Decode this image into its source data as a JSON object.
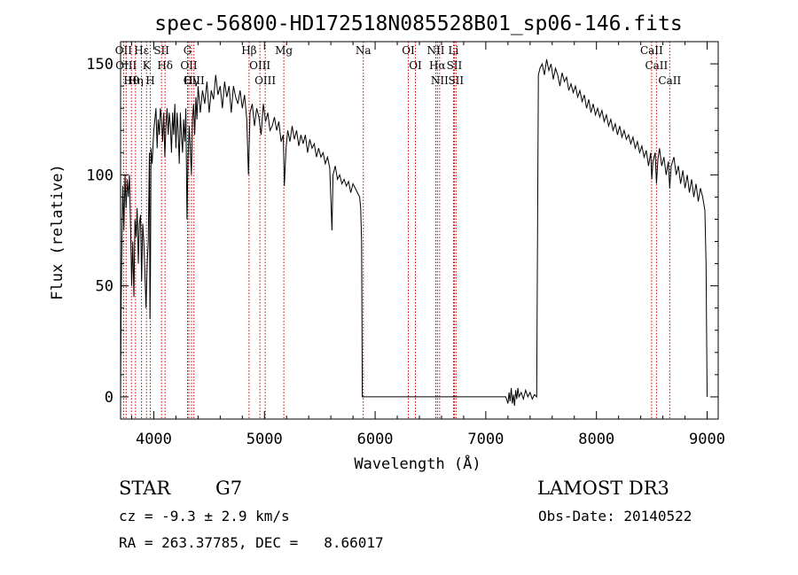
{
  "chart_data": {
    "type": "line",
    "title": "spec-56800-HD172518N085528B01_sp06-146.fits",
    "xlabel": "Wavelength (Å)",
    "ylabel": "Flux (relative)",
    "xlim": [
      3700,
      9100
    ],
    "ylim": [
      -10,
      160
    ],
    "xticks": [
      4000,
      5000,
      6000,
      7000,
      8000,
      9000
    ],
    "yticks": [
      0,
      50,
      100,
      150
    ],
    "grid": false,
    "series": [
      {
        "values": [
          [
            3700,
            0
          ],
          [
            3705,
            40
          ],
          [
            3712,
            70
          ],
          [
            3720,
            95
          ],
          [
            3730,
            75
          ],
          [
            3740,
            100
          ],
          [
            3750,
            85
          ],
          [
            3760,
            98
          ],
          [
            3770,
            90
          ],
          [
            3780,
            100
          ],
          [
            3790,
            78
          ],
          [
            3800,
            50
          ],
          [
            3810,
            70
          ],
          [
            3820,
            45
          ],
          [
            3830,
            80
          ],
          [
            3840,
            72
          ],
          [
            3850,
            85
          ],
          [
            3860,
            60
          ],
          [
            3870,
            78
          ],
          [
            3880,
            82
          ],
          [
            3890,
            52
          ],
          [
            3900,
            78
          ],
          [
            3910,
            70
          ],
          [
            3920,
            55
          ],
          [
            3930,
            40
          ],
          [
            3940,
            60
          ],
          [
            3950,
            70
          ],
          [
            3960,
            110
          ],
          [
            3965,
            35
          ],
          [
            3970,
            55
          ],
          [
            3975,
            112
          ],
          [
            3985,
            105
          ],
          [
            4000,
            120
          ],
          [
            4010,
            125
          ],
          [
            4020,
            130
          ],
          [
            4030,
            112
          ],
          [
            4040,
            125
          ],
          [
            4050,
            118
          ],
          [
            4060,
            130
          ],
          [
            4070,
            125
          ],
          [
            4080,
            115
          ],
          [
            4090,
            128
          ],
          [
            4100,
            108
          ],
          [
            4110,
            122
          ],
          [
            4120,
            130
          ],
          [
            4130,
            118
          ],
          [
            4140,
            128
          ],
          [
            4150,
            122
          ],
          [
            4160,
            110
          ],
          [
            4170,
            128
          ],
          [
            4180,
            118
          ],
          [
            4190,
            132
          ],
          [
            4200,
            112
          ],
          [
            4210,
            128
          ],
          [
            4220,
            120
          ],
          [
            4230,
            105
          ],
          [
            4240,
            128
          ],
          [
            4250,
            118
          ],
          [
            4260,
            110
          ],
          [
            4270,
            125
          ],
          [
            4280,
            115
          ],
          [
            4290,
            130
          ],
          [
            4300,
            80
          ],
          [
            4310,
            108
          ],
          [
            4320,
            122
          ],
          [
            4330,
            112
          ],
          [
            4340,
            100
          ],
          [
            4350,
            125
          ],
          [
            4360,
            132
          ],
          [
            4370,
            118
          ],
          [
            4380,
            135
          ],
          [
            4390,
            125
          ],
          [
            4400,
            140
          ],
          [
            4420,
            128
          ],
          [
            4440,
            138
          ],
          [
            4460,
            132
          ],
          [
            4480,
            142
          ],
          [
            4500,
            128
          ],
          [
            4520,
            138
          ],
          [
            4540,
            134
          ],
          [
            4560,
            145
          ],
          [
            4580,
            136
          ],
          [
            4600,
            140
          ],
          [
            4620,
            130
          ],
          [
            4640,
            142
          ],
          [
            4660,
            135
          ],
          [
            4680,
            140
          ],
          [
            4700,
            128
          ],
          [
            4720,
            140
          ],
          [
            4740,
            135
          ],
          [
            4760,
            132
          ],
          [
            4780,
            138
          ],
          [
            4800,
            130
          ],
          [
            4820,
            136
          ],
          [
            4840,
            125
          ],
          [
            4855,
            100
          ],
          [
            4870,
            128
          ],
          [
            4890,
            132
          ],
          [
            4910,
            122
          ],
          [
            4930,
            130
          ],
          [
            4950,
            126
          ],
          [
            4970,
            118
          ],
          [
            4990,
            132
          ],
          [
            5010,
            124
          ],
          [
            5030,
            128
          ],
          [
            5050,
            120
          ],
          [
            5070,
            122
          ],
          [
            5090,
            126
          ],
          [
            5110,
            120
          ],
          [
            5130,
            124
          ],
          [
            5150,
            115
          ],
          [
            5170,
            118
          ],
          [
            5180,
            95
          ],
          [
            5195,
            112
          ],
          [
            5210,
            120
          ],
          [
            5230,
            115
          ],
          [
            5250,
            122
          ],
          [
            5270,
            116
          ],
          [
            5290,
            120
          ],
          [
            5310,
            113
          ],
          [
            5330,
            118
          ],
          [
            5350,
            114
          ],
          [
            5370,
            118
          ],
          [
            5390,
            110
          ],
          [
            5410,
            116
          ],
          [
            5430,
            112
          ],
          [
            5450,
            114
          ],
          [
            5470,
            108
          ],
          [
            5490,
            112
          ],
          [
            5510,
            108
          ],
          [
            5530,
            110
          ],
          [
            5550,
            105
          ],
          [
            5570,
            108
          ],
          [
            5590,
            103
          ],
          [
            5610,
            75
          ],
          [
            5620,
            100
          ],
          [
            5640,
            104
          ],
          [
            5660,
            98
          ],
          [
            5680,
            100
          ],
          [
            5700,
            96
          ],
          [
            5720,
            98
          ],
          [
            5740,
            95
          ],
          [
            5760,
            97
          ],
          [
            5780,
            92
          ],
          [
            5800,
            96
          ],
          [
            5820,
            94
          ],
          [
            5840,
            92
          ],
          [
            5860,
            90
          ],
          [
            5870,
            85
          ],
          [
            5878,
            70
          ],
          [
            5884,
            0
          ],
          [
            5900,
            0
          ],
          [
            6200,
            0
          ],
          [
            6600,
            0
          ],
          [
            7000,
            0
          ],
          [
            7180,
            0
          ],
          [
            7200,
            -3
          ],
          [
            7210,
            2
          ],
          [
            7220,
            -2
          ],
          [
            7230,
            4
          ],
          [
            7240,
            -3
          ],
          [
            7250,
            1
          ],
          [
            7260,
            -4
          ],
          [
            7270,
            3
          ],
          [
            7280,
            -1
          ],
          [
            7290,
            4
          ],
          [
            7300,
            0
          ],
          [
            7320,
            2
          ],
          [
            7340,
            -1
          ],
          [
            7360,
            3
          ],
          [
            7380,
            0
          ],
          [
            7400,
            2
          ],
          [
            7420,
            -1
          ],
          [
            7440,
            1
          ],
          [
            7460,
            0
          ],
          [
            7470,
            100
          ],
          [
            7475,
            145
          ],
          [
            7490,
            148
          ],
          [
            7510,
            150
          ],
          [
            7530,
            145
          ],
          [
            7550,
            152
          ],
          [
            7570,
            147
          ],
          [
            7590,
            150
          ],
          [
            7610,
            143
          ],
          [
            7630,
            148
          ],
          [
            7650,
            145
          ],
          [
            7670,
            140
          ],
          [
            7690,
            146
          ],
          [
            7710,
            142
          ],
          [
            7730,
            144
          ],
          [
            7750,
            138
          ],
          [
            7770,
            141
          ],
          [
            7790,
            137
          ],
          [
            7810,
            140
          ],
          [
            7830,
            135
          ],
          [
            7850,
            138
          ],
          [
            7870,
            133
          ],
          [
            7890,
            136
          ],
          [
            7910,
            130
          ],
          [
            7930,
            134
          ],
          [
            7950,
            128
          ],
          [
            7970,
            132
          ],
          [
            7990,
            127
          ],
          [
            8010,
            130
          ],
          [
            8030,
            126
          ],
          [
            8050,
            129
          ],
          [
            8070,
            124
          ],
          [
            8090,
            127
          ],
          [
            8110,
            122
          ],
          [
            8130,
            125
          ],
          [
            8150,
            120
          ],
          [
            8170,
            123
          ],
          [
            8190,
            118
          ],
          [
            8210,
            122
          ],
          [
            8230,
            117
          ],
          [
            8250,
            120
          ],
          [
            8270,
            116
          ],
          [
            8290,
            118
          ],
          [
            8310,
            114
          ],
          [
            8330,
            117
          ],
          [
            8350,
            112
          ],
          [
            8370,
            115
          ],
          [
            8390,
            110
          ],
          [
            8410,
            113
          ],
          [
            8430,
            108
          ],
          [
            8450,
            111
          ],
          [
            8470,
            104
          ],
          [
            8490,
            110
          ],
          [
            8500,
            98
          ],
          [
            8510,
            106
          ],
          [
            8530,
            110
          ],
          [
            8542,
            96
          ],
          [
            8555,
            107
          ],
          [
            8570,
            112
          ],
          [
            8590,
            104
          ],
          [
            8610,
            108
          ],
          [
            8630,
            100
          ],
          [
            8650,
            106
          ],
          [
            8662,
            94
          ],
          [
            8675,
            104
          ],
          [
            8700,
            108
          ],
          [
            8720,
            100
          ],
          [
            8740,
            104
          ],
          [
            8760,
            96
          ],
          [
            8780,
            102
          ],
          [
            8800,
            94
          ],
          [
            8820,
            100
          ],
          [
            8840,
            92
          ],
          [
            8860,
            98
          ],
          [
            8880,
            90
          ],
          [
            8900,
            96
          ],
          [
            8920,
            88
          ],
          [
            8940,
            94
          ],
          [
            8960,
            90
          ],
          [
            8980,
            84
          ],
          [
            8990,
            60
          ],
          [
            9000,
            0
          ]
        ]
      }
    ],
    "line_markers": [
      {
        "label": "Hθ",
        "x": 3798
      },
      {
        "label": "OII",
        "x": 3727
      },
      {
        "label": "OIII",
        "x": 3750
      },
      {
        "label": "Hη",
        "x": 3835
      },
      {
        "label": "K",
        "x": 3934
      },
      {
        "label": "Hε",
        "x": 3889
      },
      {
        "label": "H",
        "x": 3968
      },
      {
        "label": "Hδ",
        "x": 4102
      },
      {
        "label": "SII",
        "x": 4070
      },
      {
        "label": "OII",
        "x": 4317
      },
      {
        "label": "Hγ",
        "x": 4341
      },
      {
        "label": "G",
        "x": 4305
      },
      {
        "label": "OIII",
        "x": 4363
      },
      {
        "label": "Hβ",
        "x": 4861
      },
      {
        "label": "OIII",
        "x": 4959
      },
      {
        "label": "OIII",
        "x": 5007
      },
      {
        "label": "Mg",
        "x": 5175
      },
      {
        "label": "Na",
        "x": 5893
      },
      {
        "label": "OI",
        "x": 6300
      },
      {
        "label": "OI",
        "x": 6364
      },
      {
        "label": "Hα",
        "x": 6563
      },
      {
        "label": "NII",
        "x": 6548
      },
      {
        "label": "NII",
        "x": 6583
      },
      {
        "label": "SII",
        "x": 6716
      },
      {
        "label": "SII",
        "x": 6731
      },
      {
        "label": "Li",
        "x": 6708
      },
      {
        "label": "CaII",
        "x": 8498
      },
      {
        "label": "CaII",
        "x": 8542
      },
      {
        "label": "CaII",
        "x": 8662
      }
    ]
  },
  "info": {
    "object_type": "STAR",
    "subclass": "G7",
    "survey": "LAMOST DR3",
    "redshift": "cz = -9.3 ± 2.9 km/s",
    "obs_date": "Obs-Date: 20140522",
    "coords": "RA = 263.37785, DEC =   8.66017"
  },
  "colors": {
    "axis": "#000000",
    "spectrum": "#000000",
    "marker_line": "#cc0000"
  }
}
